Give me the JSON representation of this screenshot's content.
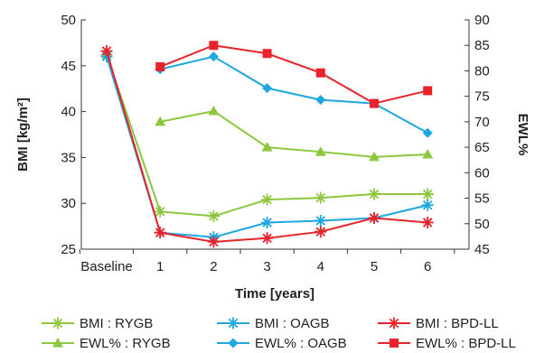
{
  "chart_data": {
    "type": "line",
    "categories": [
      "Baseline",
      "1",
      "2",
      "3",
      "4",
      "5",
      "6"
    ],
    "xlabel": "Time [years]",
    "ylabel": "BMI [kg/m²]",
    "y2label": "EWL%",
    "ylim": [
      25,
      50
    ],
    "yticks": [
      25,
      30,
      35,
      40,
      45,
      50
    ],
    "y2lim": [
      45,
      90
    ],
    "y2ticks": [
      45,
      50,
      55,
      60,
      65,
      70,
      75,
      80,
      85,
      90
    ],
    "grid": false,
    "legend_position": "bottom",
    "series": [
      {
        "name": "BMI : RYGB",
        "axis": "left",
        "marker": "asterisk",
        "color": "#8dc63f",
        "values": [
          46.2,
          29.1,
          28.6,
          30.4,
          30.6,
          31.0,
          31.0
        ]
      },
      {
        "name": "BMI : OAGB",
        "axis": "left",
        "marker": "asterisk",
        "color": "#1ea7e1",
        "values": [
          46.0,
          26.8,
          26.3,
          27.9,
          28.1,
          28.4,
          29.8
        ]
      },
      {
        "name": "BMI : BPD-LL",
        "axis": "left",
        "marker": "asterisk",
        "color": "#e8232a",
        "values": [
          46.6,
          26.8,
          25.8,
          26.2,
          26.9,
          28.4,
          27.9
        ]
      },
      {
        "name": "EWL% : RYGB",
        "axis": "right",
        "marker": "triangle",
        "color": "#8dc63f",
        "values": [
          null,
          70.0,
          72.1,
          65.0,
          64.1,
          63.1,
          63.6
        ]
      },
      {
        "name": "EWL% : OAGB",
        "axis": "right",
        "marker": "diamond",
        "color": "#1ea7e1",
        "values": [
          null,
          80.3,
          82.8,
          76.6,
          74.3,
          73.6,
          67.8
        ]
      },
      {
        "name": "EWL% : BPD-LL",
        "axis": "right",
        "marker": "square",
        "color": "#e8232a",
        "values": [
          null,
          80.8,
          85.0,
          83.4,
          79.6,
          73.6,
          76.1
        ]
      }
    ]
  }
}
